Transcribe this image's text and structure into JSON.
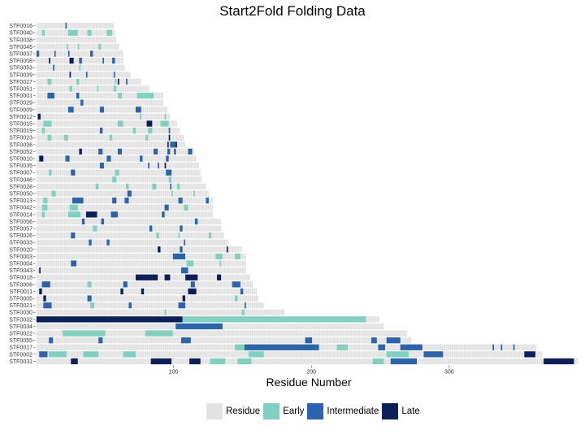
{
  "chart_data": {
    "type": "heatmap",
    "title": "Start2Fold Folding Data",
    "xlabel": "Residue Number",
    "ylabel": "",
    "x_ticks": [
      100,
      200,
      300
    ],
    "xlim": [
      0,
      395
    ],
    "legend_position": "bottom",
    "categories_legend": [
      {
        "name": "Residue",
        "color": "#e2e2e2"
      },
      {
        "name": "Early",
        "color": "#7fd0bf"
      },
      {
        "name": "Intermediate",
        "color": "#2a64ad"
      },
      {
        "name": "Late",
        "color": "#0c1f5b"
      }
    ],
    "rows": [
      {
        "id": "STF0016",
        "length": 56,
        "segments": [
          [
            22,
            22,
            "I"
          ]
        ]
      },
      {
        "id": "STF0040",
        "length": 57,
        "segments": [
          [
            5,
            6,
            "E"
          ],
          [
            24,
            30,
            "E"
          ],
          [
            38,
            40,
            "E"
          ],
          [
            52,
            55,
            "E"
          ]
        ]
      },
      {
        "id": "STF0038",
        "length": 58,
        "segments": []
      },
      {
        "id": "STF0045",
        "length": 60,
        "segments": [
          [
            23,
            23,
            "E"
          ],
          [
            31,
            31,
            "E"
          ],
          [
            46,
            47,
            "E"
          ]
        ]
      },
      {
        "id": "STF0037",
        "length": 63,
        "segments": [
          [
            1,
            2,
            "I"
          ],
          [
            14,
            14,
            "I"
          ],
          [
            24,
            24,
            "I"
          ],
          [
            40,
            41,
            "I"
          ]
        ]
      },
      {
        "id": "STF0008",
        "length": 63,
        "segments": [
          [
            10,
            10,
            "L"
          ],
          [
            25,
            27,
            "L"
          ],
          [
            32,
            33,
            "I"
          ],
          [
            49,
            49,
            "I"
          ],
          [
            56,
            57,
            "I"
          ]
        ]
      },
      {
        "id": "STF0053",
        "length": 64,
        "segments": [
          [
            13,
            13,
            "I"
          ],
          [
            32,
            32,
            "E"
          ]
        ]
      },
      {
        "id": "STF0039",
        "length": 68,
        "segments": [
          [
            25,
            25,
            "L"
          ],
          [
            37,
            37,
            "I"
          ],
          [
            57,
            57,
            "I"
          ]
        ]
      },
      {
        "id": "STF0027",
        "length": 76,
        "segments": [
          [
            9,
            11,
            "E"
          ],
          [
            30,
            31,
            "E"
          ],
          [
            58,
            58,
            "E"
          ],
          [
            60,
            60,
            "L"
          ],
          [
            66,
            66,
            "I"
          ]
        ]
      },
      {
        "id": "STF0051",
        "length": 82,
        "segments": [
          [
            25,
            26,
            "E"
          ],
          [
            45,
            45,
            "E"
          ],
          [
            57,
            58,
            "E"
          ]
        ]
      },
      {
        "id": "STF0001",
        "length": 92,
        "segments": [
          [
            9,
            13,
            "I"
          ],
          [
            30,
            31,
            "I"
          ],
          [
            60,
            62,
            "E"
          ],
          [
            74,
            85,
            "E"
          ]
        ]
      },
      {
        "id": "STF0029",
        "length": 92,
        "segments": [
          [
            33,
            34,
            "I"
          ]
        ]
      },
      {
        "id": "STF0009",
        "length": 95,
        "segments": [
          [
            24,
            27,
            "I"
          ],
          [
            47,
            49,
            "I"
          ],
          [
            73,
            76,
            "I"
          ]
        ]
      },
      {
        "id": "STF0012",
        "length": 97,
        "segments": [
          [
            2,
            3,
            "L"
          ],
          [
            76,
            76,
            "E"
          ],
          [
            94,
            94,
            "E"
          ]
        ]
      },
      {
        "id": "STF0015",
        "length": 102,
        "segments": [
          [
            6,
            11,
            "E"
          ],
          [
            60,
            63,
            "E"
          ],
          [
            81,
            84,
            "L"
          ],
          [
            91,
            96,
            "E"
          ]
        ]
      },
      {
        "id": "STF0019",
        "length": 104,
        "segments": [
          [
            5,
            6,
            "E"
          ],
          [
            47,
            48,
            "I"
          ],
          [
            71,
            72,
            "E"
          ],
          [
            82,
            84,
            "E"
          ],
          [
            97,
            97,
            "I"
          ]
        ]
      },
      {
        "id": "STF0023",
        "length": 107,
        "segments": [
          [
            9,
            11,
            "E"
          ],
          [
            21,
            23,
            "E"
          ],
          [
            54,
            55,
            "E"
          ],
          [
            80,
            81,
            "E"
          ],
          [
            97,
            97,
            "L"
          ]
        ]
      },
      {
        "id": "STF0036",
        "length": 108,
        "segments": [
          [
            96,
            96,
            "L"
          ],
          [
            98,
            101,
            "I"
          ],
          [
            102,
            102,
            "L"
          ]
        ]
      },
      {
        "id": "STF0052",
        "length": 114,
        "segments": [
          [
            32,
            33,
            "L"
          ],
          [
            46,
            48,
            "I"
          ],
          [
            60,
            62,
            "I"
          ],
          [
            86,
            88,
            "I"
          ],
          [
            96,
            97,
            "I"
          ],
          [
            101,
            101,
            "L"
          ],
          [
            111,
            113,
            "I"
          ]
        ]
      },
      {
        "id": "STF0010",
        "length": 116,
        "segments": [
          [
            3,
            5,
            "L"
          ],
          [
            22,
            24,
            "I"
          ],
          [
            52,
            54,
            "I"
          ],
          [
            76,
            77,
            "I"
          ],
          [
            95,
            96,
            "I"
          ]
        ]
      },
      {
        "id": "STF0035",
        "length": 118,
        "segments": [
          [
            47,
            49,
            "I"
          ],
          [
            82,
            82,
            "I"
          ],
          [
            89,
            89,
            "I"
          ],
          [
            94,
            94,
            "L"
          ]
        ]
      },
      {
        "id": "STF0007",
        "length": 119,
        "segments": [
          [
            10,
            11,
            "E"
          ],
          [
            26,
            28,
            "I"
          ],
          [
            58,
            60,
            "E"
          ],
          [
            95,
            98,
            "I"
          ]
        ]
      },
      {
        "id": "STF0046",
        "length": 120,
        "segments": [
          [
            56,
            58,
            "E"
          ],
          [
            97,
            98,
            "E"
          ]
        ]
      },
      {
        "id": "STF0028",
        "length": 123,
        "segments": [
          [
            44,
            45,
            "E"
          ],
          [
            66,
            67,
            "E"
          ],
          [
            85,
            87,
            "E"
          ],
          [
            98,
            98,
            "I"
          ],
          [
            103,
            104,
            "E"
          ]
        ]
      },
      {
        "id": "STF0050",
        "length": 125,
        "segments": [
          [
            12,
            14,
            "E"
          ],
          [
            67,
            69,
            "I"
          ],
          [
            99,
            99,
            "E"
          ],
          [
            115,
            115,
            "E"
          ]
        ]
      },
      {
        "id": "STF0013",
        "length": 128,
        "segments": [
          [
            6,
            8,
            "E"
          ],
          [
            27,
            34,
            "I"
          ],
          [
            56,
            58,
            "I"
          ],
          [
            65,
            67,
            "I"
          ],
          [
            104,
            106,
            "I"
          ],
          [
            124,
            125,
            "I"
          ]
        ]
      },
      {
        "id": "STF0042",
        "length": 128,
        "segments": [
          [
            5,
            8,
            "E"
          ],
          [
            25,
            30,
            "E"
          ],
          [
            94,
            96,
            "I"
          ],
          [
            108,
            110,
            "E"
          ]
        ]
      },
      {
        "id": "STF0014",
        "length": 128,
        "segments": [
          [
            5,
            6,
            "E"
          ],
          [
            24,
            32,
            "E"
          ],
          [
            37,
            44,
            "L"
          ],
          [
            55,
            59,
            "I"
          ],
          [
            92,
            93,
            "I"
          ]
        ]
      },
      {
        "id": "STF0056",
        "length": 134,
        "segments": [
          [
            34,
            35,
            "I"
          ],
          [
            48,
            49,
            "I"
          ],
          [
            116,
            117,
            "I"
          ]
        ]
      },
      {
        "id": "STF0057",
        "length": 134,
        "segments": [
          [
            42,
            44,
            "E"
          ],
          [
            83,
            84,
            "I"
          ],
          [
            105,
            106,
            "I"
          ]
        ]
      },
      {
        "id": "STF0026",
        "length": 136,
        "segments": [
          [
            26,
            28,
            "I"
          ],
          [
            88,
            89,
            "E"
          ],
          [
            104,
            104,
            "E"
          ],
          [
            126,
            127,
            "E"
          ]
        ]
      },
      {
        "id": "STF0033",
        "length": 139,
        "segments": [
          [
            39,
            40,
            "I"
          ],
          [
            52,
            53,
            "I"
          ],
          [
            108,
            108,
            "I"
          ]
        ]
      },
      {
        "id": "STF0020",
        "length": 149,
        "segments": [
          [
            89,
            90,
            "L"
          ],
          [
            105,
            106,
            "I"
          ],
          [
            139,
            139,
            "L"
          ]
        ]
      },
      {
        "id": "STF0003",
        "length": 152,
        "segments": [
          [
            100,
            108,
            "I"
          ],
          [
            131,
            135,
            "E"
          ],
          [
            145,
            148,
            "E"
          ]
        ]
      },
      {
        "id": "STF0004",
        "length": 152,
        "segments": [
          [
            26,
            29,
            "I"
          ],
          [
            110,
            114,
            "E"
          ],
          [
            134,
            134,
            "E"
          ]
        ]
      },
      {
        "id": "STF0043",
        "length": 152,
        "segments": [
          [
            3,
            3,
            "L"
          ],
          [
            106,
            110,
            "I"
          ]
        ]
      },
      {
        "id": "STF0018",
        "length": 155,
        "segments": [
          [
            73,
            88,
            "L"
          ],
          [
            94,
            97,
            "L"
          ],
          [
            109,
            117,
            "L"
          ],
          [
            132,
            134,
            "L"
          ]
        ]
      },
      {
        "id": "STF0006",
        "length": 157,
        "segments": [
          [
            5,
            10,
            "I"
          ],
          [
            38,
            40,
            "E"
          ],
          [
            64,
            66,
            "I"
          ],
          [
            113,
            115,
            "I"
          ],
          [
            143,
            148,
            "I"
          ]
        ]
      },
      {
        "id": "STF0011",
        "length": 160,
        "segments": [
          [
            3,
            4,
            "L"
          ],
          [
            62,
            63,
            "L"
          ],
          [
            77,
            78,
            "L"
          ],
          [
            111,
            116,
            "L"
          ],
          [
            149,
            150,
            "I"
          ]
        ]
      },
      {
        "id": "STF0005",
        "length": 161,
        "segments": [
          [
            6,
            7,
            "L"
          ],
          [
            38,
            40,
            "I"
          ],
          [
            107,
            108,
            "L"
          ],
          [
            145,
            146,
            "E"
          ]
        ]
      },
      {
        "id": "STF0021",
        "length": 165,
        "segments": [
          [
            6,
            11,
            "I"
          ],
          [
            40,
            42,
            "E"
          ],
          [
            68,
            69,
            "I"
          ],
          [
            104,
            108,
            "I"
          ],
          [
            152,
            152,
            "I"
          ]
        ]
      },
      {
        "id": "STF0030",
        "length": 180,
        "segments": [
          [
            94,
            94,
            "E"
          ],
          [
            150,
            151,
            "E"
          ]
        ]
      },
      {
        "id": "STF0032",
        "length": 249,
        "segments": [
          [
            1,
            106,
            "L"
          ],
          [
            107,
            239,
            "E"
          ]
        ]
      },
      {
        "id": "STF0034",
        "length": 252,
        "segments": [
          [
            102,
            135,
            "I"
          ]
        ]
      },
      {
        "id": "STF0022",
        "length": 269,
        "segments": [
          [
            20,
            50,
            "E"
          ],
          [
            80,
            99,
            "E"
          ]
        ]
      },
      {
        "id": "STF0055",
        "length": 272,
        "segments": [
          [
            10,
            12,
            "I"
          ],
          [
            46,
            48,
            "I"
          ],
          [
            106,
            112,
            "I"
          ],
          [
            196,
            200,
            "I"
          ],
          [
            244,
            247,
            "I"
          ],
          [
            255,
            264,
            "I"
          ]
        ]
      },
      {
        "id": "STF0017",
        "length": 363,
        "segments": [
          [
            145,
            152,
            "E"
          ],
          [
            152,
            205,
            "I"
          ],
          [
            219,
            226,
            "E"
          ],
          [
            249,
            253,
            "I"
          ],
          [
            265,
            280,
            "I"
          ],
          [
            332,
            332,
            "I"
          ],
          [
            338,
            338,
            "I"
          ],
          [
            347,
            347,
            "I"
          ]
        ]
      },
      {
        "id": "STF0002",
        "length": 367,
        "segments": [
          [
            3,
            8,
            "I"
          ],
          [
            10,
            22,
            "E"
          ],
          [
            35,
            45,
            "E"
          ],
          [
            64,
            72,
            "E"
          ],
          [
            155,
            165,
            "E"
          ],
          [
            255,
            270,
            "E"
          ],
          [
            282,
            295,
            "I"
          ],
          [
            355,
            362,
            "L"
          ]
        ]
      },
      {
        "id": "STF0031",
        "length": 393,
        "segments": [
          [
            26,
            30,
            "L"
          ],
          [
            84,
            98,
            "L"
          ],
          [
            112,
            119,
            "L"
          ],
          [
            127,
            137,
            "E"
          ],
          [
            147,
            156,
            "E"
          ],
          [
            245,
            252,
            "E"
          ],
          [
            258,
            276,
            "I"
          ],
          [
            369,
            390,
            "L"
          ]
        ]
      }
    ]
  }
}
